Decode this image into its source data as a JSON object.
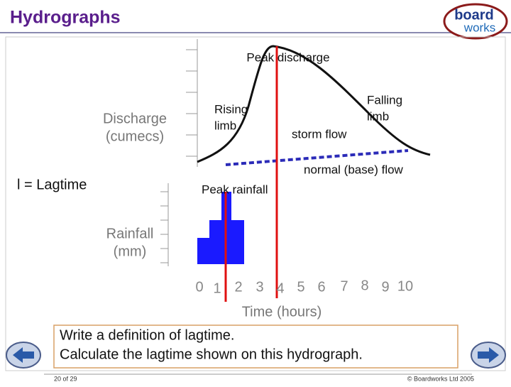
{
  "header": {
    "title": "Hydrographs",
    "logo": [
      "board",
      "works"
    ]
  },
  "diagram": {
    "y_axis_upper_label": [
      "Discharge",
      "(cumecs)"
    ],
    "y_axis_lower_label": [
      "Rainfall",
      "(mm)"
    ],
    "x_axis_label": "Time (hours)",
    "time_ticks": [
      0,
      1,
      2,
      3,
      4,
      5,
      6,
      7,
      8,
      9,
      10
    ],
    "annotations": {
      "peak_discharge": "Peak discharge",
      "rising_limb": [
        "Rising",
        "limb"
      ],
      "falling_limb": [
        "Falling",
        "limb"
      ],
      "storm_flow": "storm flow",
      "base_flow": "normal (base) flow",
      "peak_rainfall": "Peak rainfall",
      "lagtime": "l = Lagtime"
    }
  },
  "task": {
    "lines": [
      "Write a definition of lagtime.",
      "Calculate the lagtime shown on this hydrograph."
    ]
  },
  "footer": {
    "page": "20 of 29",
    "copyright": "© Boardworks Ltd 2005"
  }
}
